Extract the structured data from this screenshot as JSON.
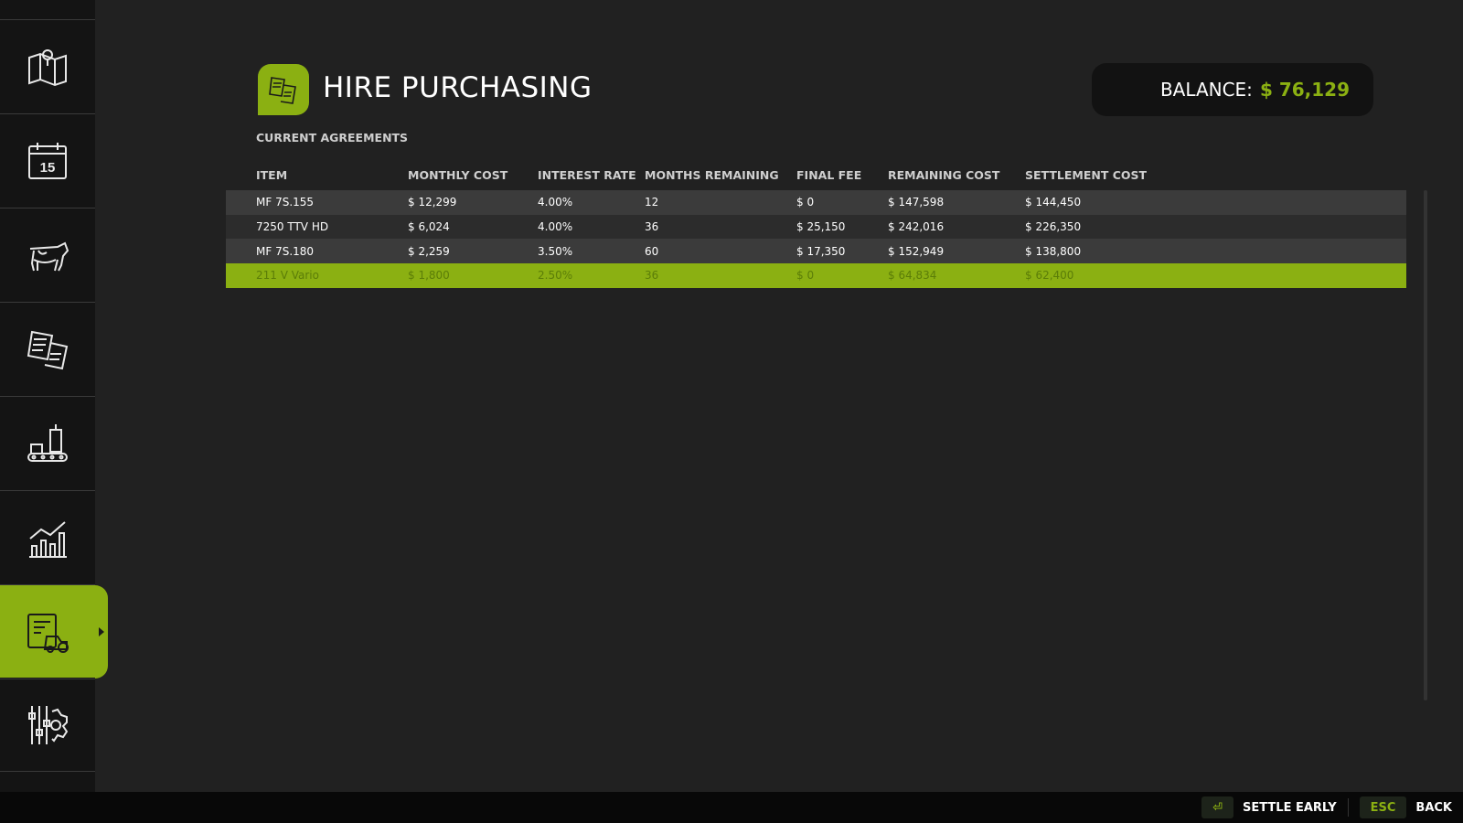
{
  "sidebar": {
    "items": [
      {
        "icon": "map-icon",
        "active": false
      },
      {
        "icon": "calendar-icon",
        "label": "15",
        "active": false
      },
      {
        "icon": "cow-icon",
        "active": false
      },
      {
        "icon": "contracts-icon",
        "active": false
      },
      {
        "icon": "production-icon",
        "active": false
      },
      {
        "icon": "statistics-icon",
        "active": false
      },
      {
        "icon": "finance-icon",
        "active": true
      },
      {
        "icon": "settings-icon",
        "active": false
      }
    ]
  },
  "header": {
    "title": "HIRE PURCHASING",
    "icon": "documents-icon"
  },
  "balance": {
    "label": "BALANCE:",
    "value": "$ 76,129"
  },
  "section_title": "CURRENT AGREEMENTS",
  "table": {
    "columns": [
      "ITEM",
      "MONTHLY COST",
      "INTEREST RATE",
      "MONTHS REMAINING",
      "FINAL FEE",
      "REMAINING COST",
      "SETTLEMENT COST"
    ],
    "rows": [
      [
        "MF 7S.155",
        "$ 12,299",
        "4.00%",
        "12",
        "$ 0",
        "$ 147,598",
        "$ 144,450"
      ],
      [
        "7250 TTV HD",
        "$ 6,024",
        "4.00%",
        "36",
        "$ 25,150",
        "$ 242,016",
        "$ 226,350"
      ],
      [
        "MF 7S.180",
        "$ 2,259",
        "3.50%",
        "60",
        "$ 17,350",
        "$ 152,949",
        "$ 138,800"
      ],
      [
        "211 V Vario",
        "$ 1,800",
        "2.50%",
        "36",
        "$ 0",
        "$ 64,834",
        "$ 62,400"
      ]
    ],
    "selected_row": 3
  },
  "footer": {
    "settle_key_icon": "enter-icon",
    "settle_label": "SETTLE EARLY",
    "back_key": "ESC",
    "back_label": "BACK"
  },
  "colors": {
    "accent": "#8bb012",
    "background": "#212121",
    "sidebar": "#141414"
  }
}
